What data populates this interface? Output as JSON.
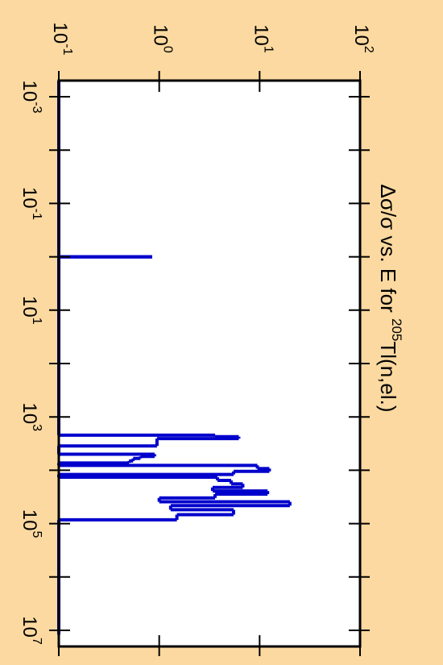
{
  "chart_data": {
    "type": "line",
    "orientation": "rotated-90-clockwise",
    "title": {
      "prefix": "Δσ/σ vs. E for ",
      "isotope_mass": "205",
      "suffix": "Tl(n,el.)"
    },
    "x_axis": {
      "quantity": "E",
      "scale": "log",
      "range": [
        0.0003,
        12000000
      ],
      "ticks": [
        {
          "value": 0.001,
          "base": "10",
          "exp": "-3"
        },
        {
          "value": 0.1,
          "base": "10",
          "exp": "-1"
        },
        {
          "value": 10,
          "base": "10",
          "exp": "1"
        },
        {
          "value": 1000,
          "base": "10",
          "exp": "3"
        },
        {
          "value": 100000,
          "base": "10",
          "exp": "5"
        },
        {
          "value": 10000000,
          "base": "10",
          "exp": "7"
        }
      ],
      "minor_ticks": [
        0.01,
        1,
        100,
        10000,
        1000000
      ]
    },
    "y_axis": {
      "quantity": "Δσ/σ",
      "scale": "log",
      "range": [
        0.1,
        100
      ],
      "ticks": [
        {
          "value": 0.1,
          "base": "10",
          "exp": "-1"
        },
        {
          "value": 1,
          "base": "10",
          "exp": "0"
        },
        {
          "value": 10,
          "base": "10",
          "exp": "1"
        },
        {
          "value": 100,
          "base": "10",
          "exp": "2"
        }
      ]
    },
    "series": [
      {
        "color": "#0000cc",
        "steps": [
          {
            "x0": 0.0003,
            "x1": 1.0,
            "y": 0.1
          },
          {
            "x0": 1.0,
            "x1": 1.0,
            "y": 0.85
          },
          {
            "x0": 1.0,
            "x1": 2200,
            "y": 0.1
          },
          {
            "x0": 2200,
            "x1": 2350,
            "y": 3.6
          },
          {
            "x0": 2350,
            "x1": 2550,
            "y": 6.2
          },
          {
            "x0": 2550,
            "x1": 3500,
            "y": 0.95
          },
          {
            "x0": 3500,
            "x1": 5000,
            "y": 0.1
          },
          {
            "x0": 5000,
            "x1": 5500,
            "y": 0.9
          },
          {
            "x0": 5500,
            "x1": 6000,
            "y": 0.65
          },
          {
            "x0": 6000,
            "x1": 6700,
            "y": 0.55
          },
          {
            "x0": 6700,
            "x1": 7300,
            "y": 0.5
          },
          {
            "x0": 7300,
            "x1": 8100,
            "y": 0.1
          },
          {
            "x0": 8100,
            "x1": 9300,
            "y": 9.5
          },
          {
            "x0": 9300,
            "x1": 10500,
            "y": 12.5
          },
          {
            "x0": 10500,
            "x1": 12000,
            "y": 5.5
          },
          {
            "x0": 12000,
            "x1": 13500,
            "y": 0.1
          },
          {
            "x0": 13500,
            "x1": 15500,
            "y": 3.8
          },
          {
            "x0": 15500,
            "x1": 18000,
            "y": 5.2
          },
          {
            "x0": 18000,
            "x1": 21000,
            "y": 6.8
          },
          {
            "x0": 21000,
            "x1": 24500,
            "y": 3.4
          },
          {
            "x0": 24500,
            "x1": 28000,
            "y": 12.0
          },
          {
            "x0": 28000,
            "x1": 33000,
            "y": 3.6
          },
          {
            "x0": 33000,
            "x1": 39000,
            "y": 1.0
          },
          {
            "x0": 39000,
            "x1": 46000,
            "y": 20.0
          },
          {
            "x0": 46000,
            "x1": 55000,
            "y": 1.3
          },
          {
            "x0": 55000,
            "x1": 68000,
            "y": 5.5
          },
          {
            "x0": 68000,
            "x1": 85000,
            "y": 1.5
          },
          {
            "x0": 85000,
            "x1": 110000,
            "y": 0.1
          },
          {
            "x0": 110000,
            "x1": 12000000,
            "y": 0.1
          }
        ]
      }
    ],
    "grid": false,
    "legend": "none",
    "colors": {
      "background": "#fbd9a0",
      "plot_area": "#ffffff",
      "frame": "#000000"
    }
  }
}
